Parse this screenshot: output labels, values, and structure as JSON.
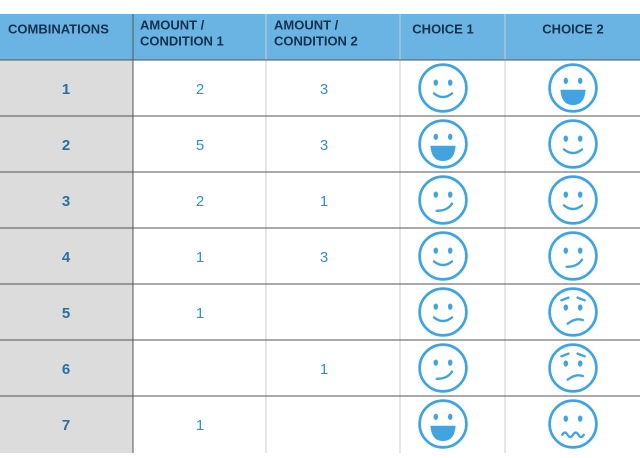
{
  "table": {
    "header": [
      [
        "COMBINATIONS"
      ],
      [
        "AMOUNT /",
        "CONDITION 1"
      ],
      [
        "AMOUNT /",
        "CONDITION 2"
      ],
      [
        "CHOICE 1"
      ],
      [
        "CHOICE 2"
      ]
    ],
    "rows": [
      [
        1,
        2,
        3
      ],
      [
        2,
        5,
        3
      ],
      [
        3,
        2,
        1
      ],
      [
        4,
        1,
        3
      ],
      [
        5,
        1,
        null
      ],
      [
        6,
        null,
        1
      ],
      [
        7,
        1,
        null
      ]
    ]
  }
}
